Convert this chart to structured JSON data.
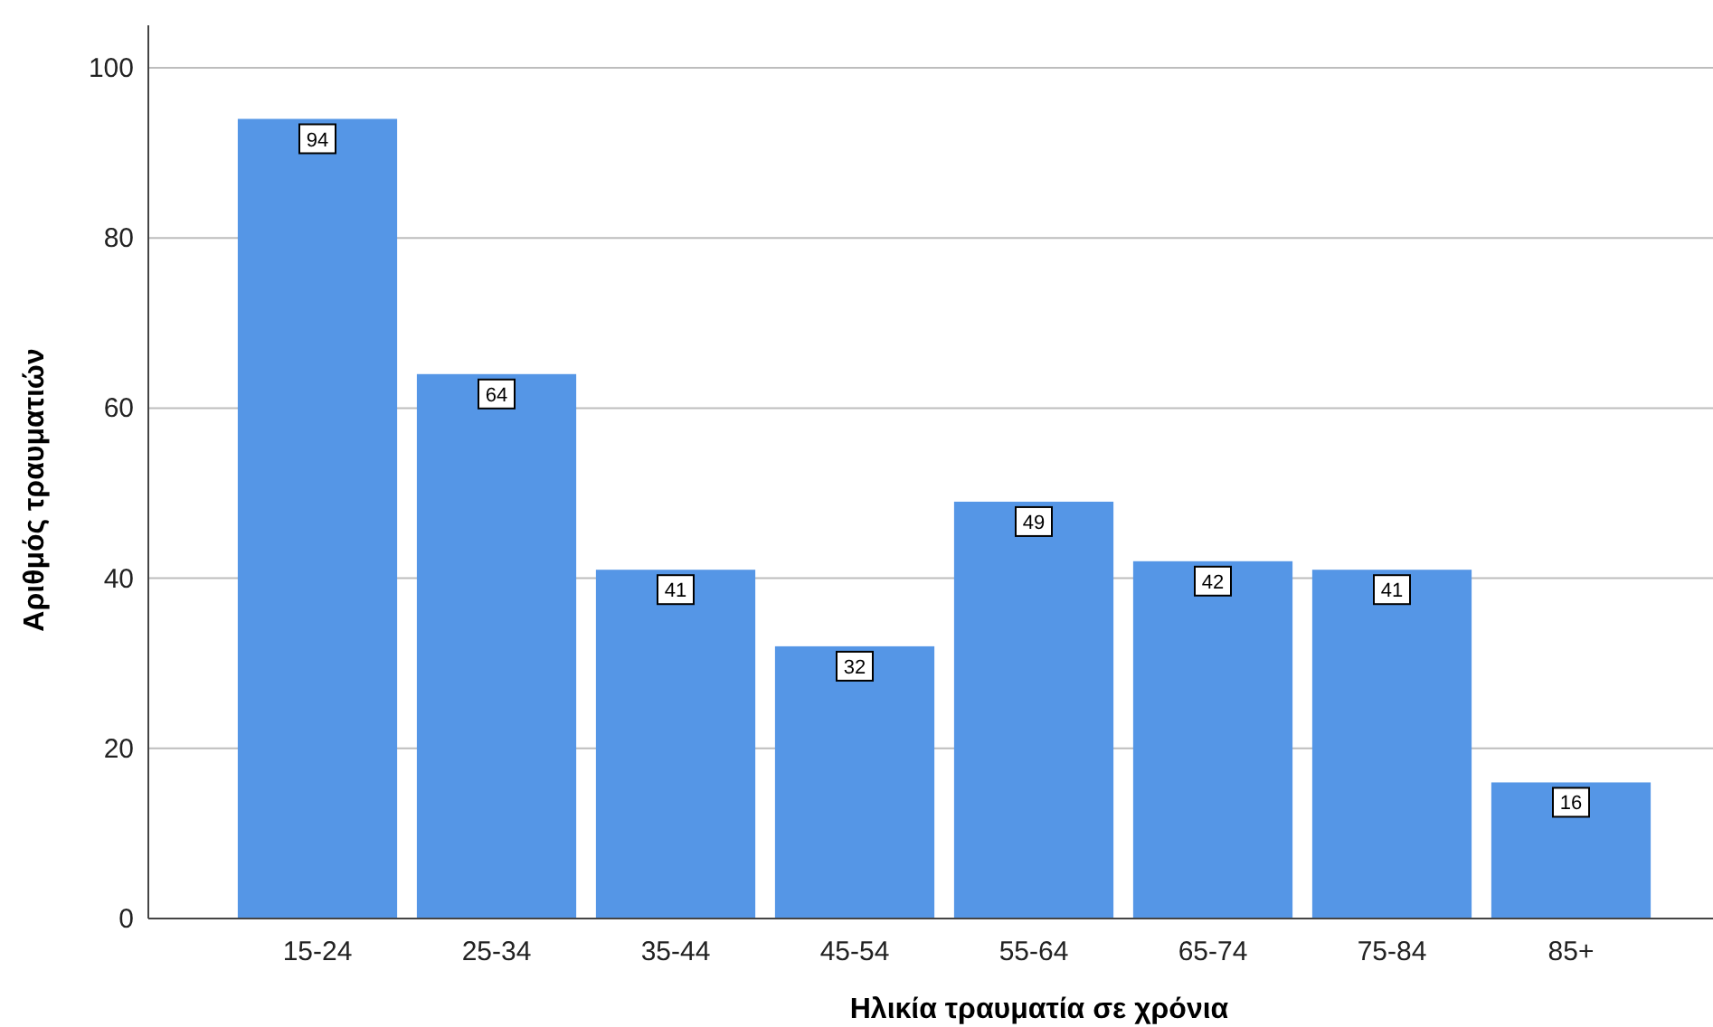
{
  "chart_data": {
    "type": "bar",
    "xlabel": "Ηλικία τραυματία σε χρόνια",
    "ylabel": "Αριθμός τραυματιών",
    "categories": [
      "15-24",
      "25-34",
      "35-44",
      "45-54",
      "55-64",
      "65-74",
      "75-84",
      "85+"
    ],
    "values": [
      94,
      64,
      41,
      32,
      49,
      42,
      41,
      16
    ],
    "color": "#5596e6",
    "ylim": [
      0,
      105
    ],
    "yticks": [
      0,
      20,
      40,
      60,
      80,
      100
    ],
    "grid": "y",
    "data_labels": true
  }
}
